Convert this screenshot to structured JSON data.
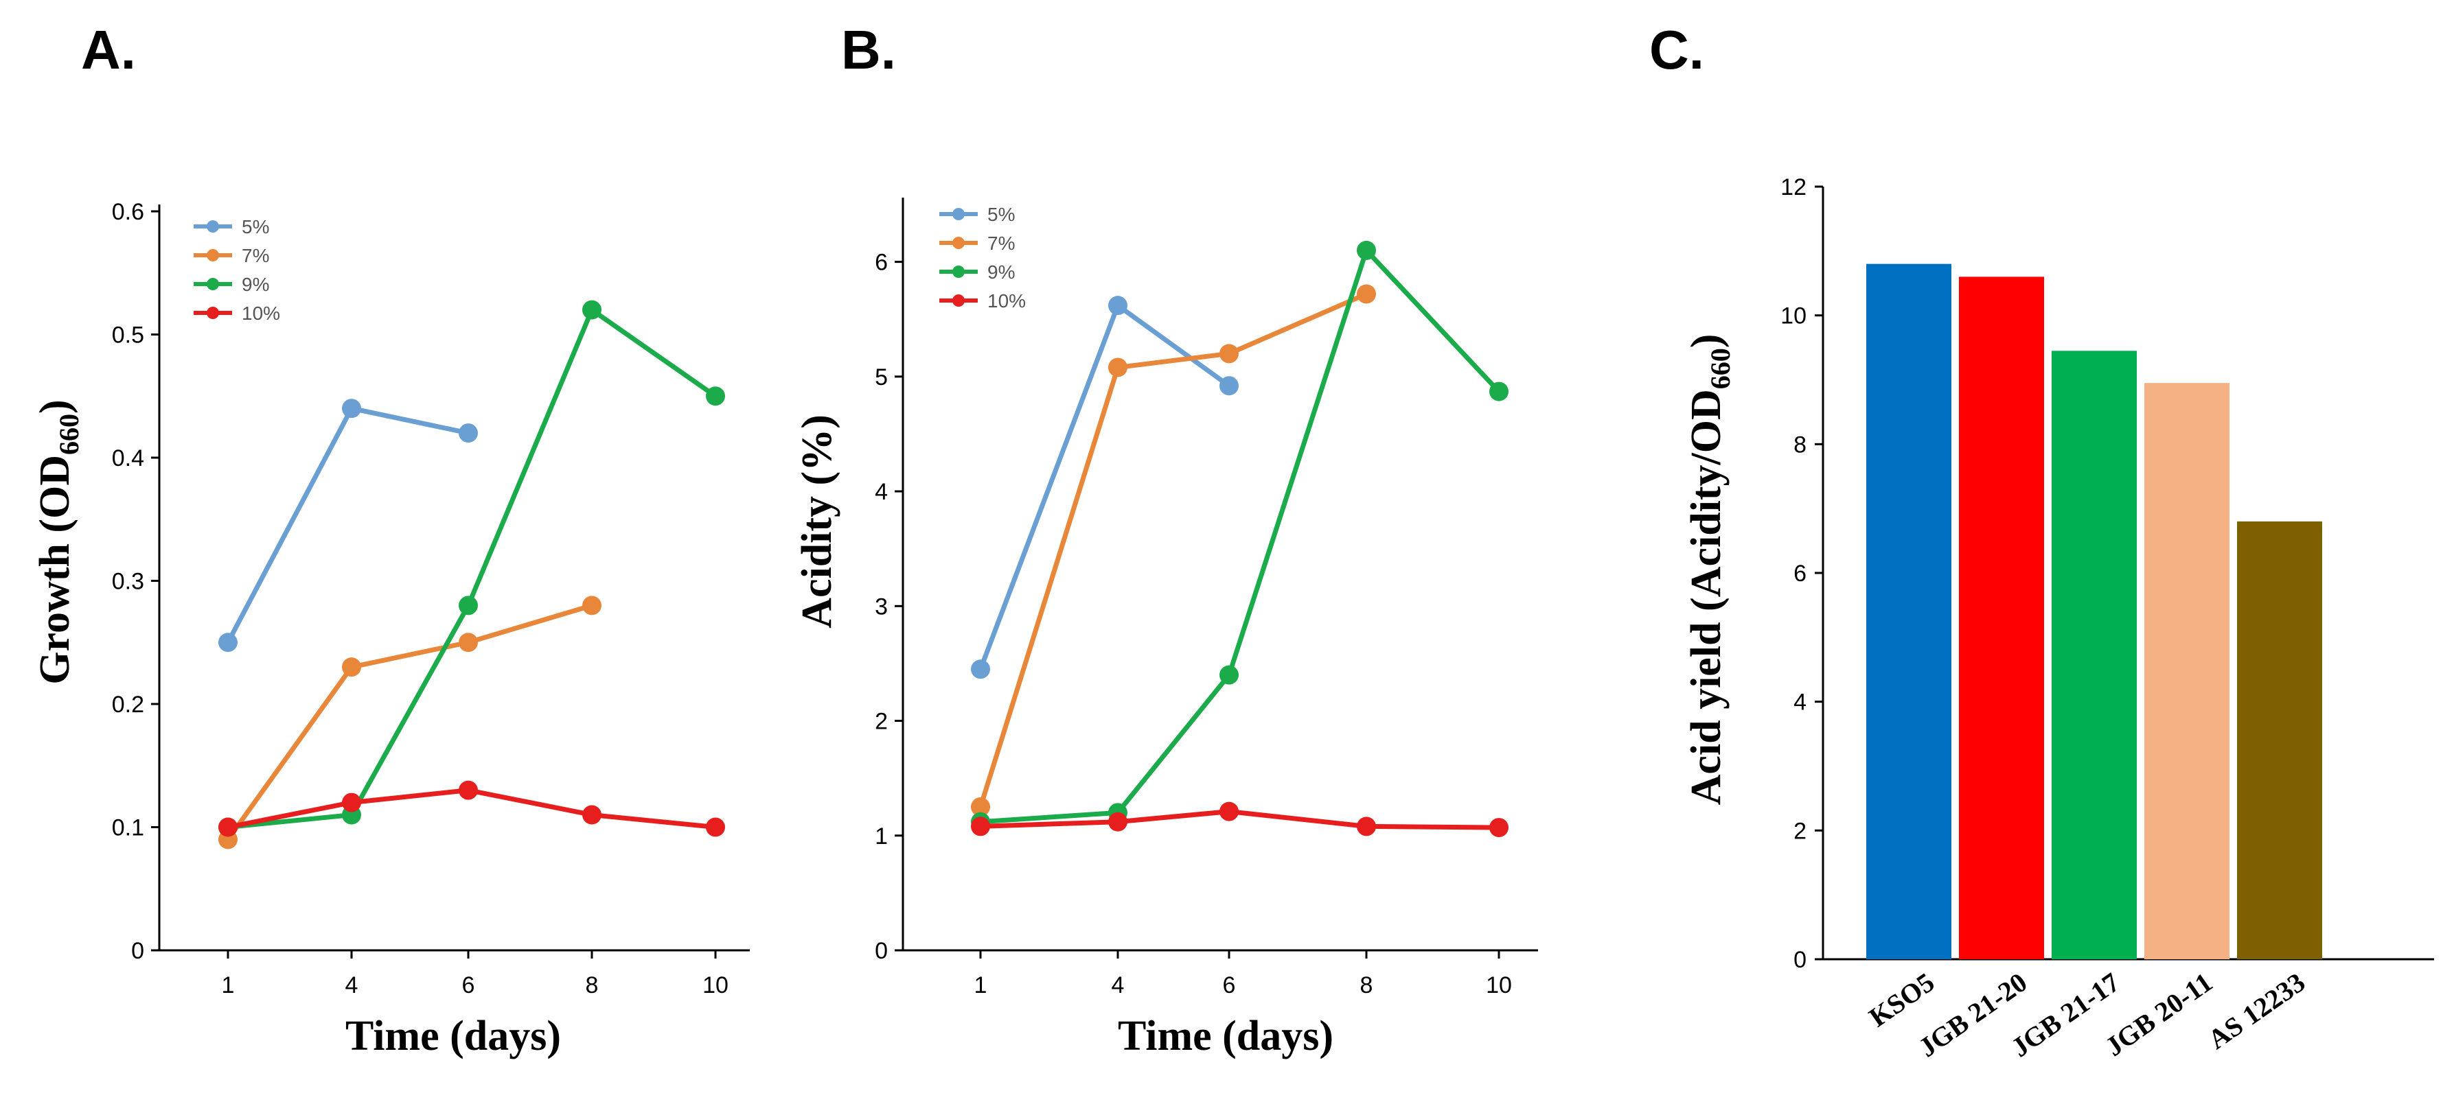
{
  "panels": [
    {
      "letter": "A."
    },
    {
      "letter": "B."
    },
    {
      "letter": "C."
    }
  ],
  "chart_data": [
    {
      "type": "line",
      "xlabel": "Time (days)",
      "ylabel_main": "Growth (OD",
      "ylabel_sub": "660",
      "ylabel_end": ")",
      "x": [
        1,
        4,
        6,
        8,
        10
      ],
      "xticks": [
        "1",
        "4",
        "6",
        "8",
        "10"
      ],
      "yticks": [
        "0",
        "0.1",
        "0.2",
        "0.3",
        "0.4",
        "0.5",
        "0.6"
      ],
      "ylim": [
        0,
        0.6
      ],
      "legend_position": "top-left",
      "series": [
        {
          "name": "5%",
          "color": "#6a9fd4",
          "values": [
            0.25,
            0.44,
            0.42,
            null,
            null
          ]
        },
        {
          "name": "7%",
          "color": "#e8873a",
          "values": [
            0.09,
            0.23,
            0.25,
            0.28,
            null
          ]
        },
        {
          "name": "9%",
          "color": "#1cab4b",
          "values": [
            0.1,
            0.11,
            0.28,
            0.52,
            0.45
          ]
        },
        {
          "name": "10%",
          "color": "#e61e1e",
          "values": [
            0.1,
            0.12,
            0.13,
            0.11,
            0.1
          ]
        }
      ]
    },
    {
      "type": "line",
      "xlabel": "Time (days)",
      "ylabel": "Acidity (%)",
      "x": [
        1,
        4,
        6,
        8,
        10
      ],
      "xticks": [
        "1",
        "4",
        "6",
        "8",
        "10"
      ],
      "yticks": [
        "0",
        "1",
        "2",
        "3",
        "4",
        "5",
        "6"
      ],
      "ylim": [
        0,
        6.5
      ],
      "legend_position": "top-left",
      "series": [
        {
          "name": "5%",
          "color": "#6a9fd4",
          "values": [
            2.45,
            5.62,
            4.92,
            null,
            null
          ]
        },
        {
          "name": "7%",
          "color": "#e8873a",
          "values": [
            1.25,
            5.08,
            5.2,
            5.72,
            null
          ]
        },
        {
          "name": "9%",
          "color": "#1cab4b",
          "values": [
            1.12,
            1.2,
            2.4,
            6.1,
            4.87
          ]
        },
        {
          "name": "10%",
          "color": "#e61e1e",
          "values": [
            1.08,
            1.12,
            1.21,
            1.08,
            1.07
          ]
        }
      ]
    },
    {
      "type": "bar",
      "ylabel_main": "Acid yield (Acidity/OD",
      "ylabel_sub": "660",
      "ylabel_end": ")",
      "categories": [
        "KSO5",
        "JGB 21-20",
        "JGB 21-17",
        "JGB 20-11",
        "AS 12233"
      ],
      "values": [
        10.8,
        10.6,
        9.45,
        8.95,
        6.8
      ],
      "colors": [
        "#0070c0",
        "#ff0000",
        "#00b050",
        "#f4b183",
        "#7f6000"
      ],
      "yticks": [
        "0",
        "2",
        "4",
        "6",
        "8",
        "10",
        "12"
      ],
      "ylim": [
        0,
        12
      ]
    }
  ]
}
